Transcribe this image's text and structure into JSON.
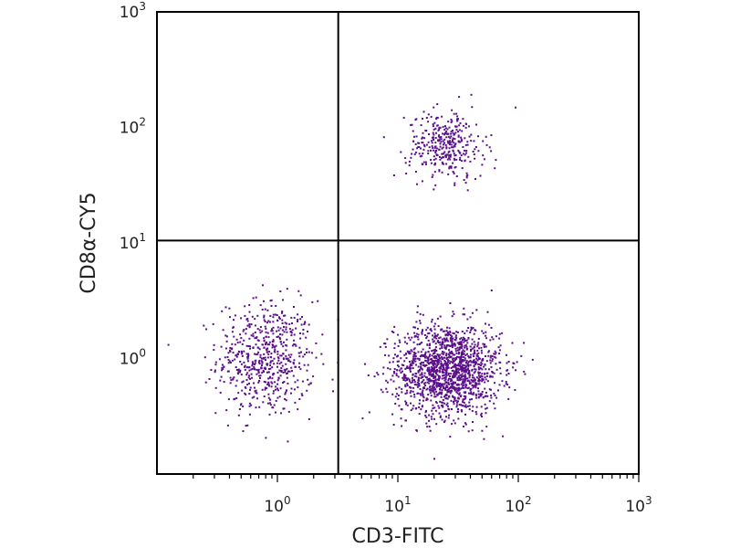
{
  "chart_data": {
    "type": "scatter",
    "xlabel": "CD3-FITC",
    "ylabel": "CD8α-CY5",
    "x_scale": "log",
    "y_scale": "log",
    "xlim": [
      0.1,
      1000
    ],
    "ylim": [
      0.1,
      1000
    ],
    "x_ticks": [
      {
        "value": 1,
        "base": "10",
        "exp": "0"
      },
      {
        "value": 10,
        "base": "10",
        "exp": "1"
      },
      {
        "value": 100,
        "base": "10",
        "exp": "2"
      },
      {
        "value": 1000,
        "base": "10",
        "exp": "3"
      }
    ],
    "y_ticks": [
      {
        "value": 1,
        "base": "10",
        "exp": "0"
      },
      {
        "value": 10,
        "base": "10",
        "exp": "1"
      },
      {
        "value": 100,
        "base": "10",
        "exp": "2"
      },
      {
        "value": 1000,
        "base": "10",
        "exp": "3"
      }
    ],
    "quadrant_gate": {
      "x": 3.2,
      "y": 10.5
    },
    "point_color": "#5b0f8a",
    "populations": [
      {
        "center_x": 0.8,
        "center_y": 1.0,
        "spread_x": 0.2,
        "spread_y": 0.25,
        "count": 600
      },
      {
        "center_x": 26,
        "center_y": 0.8,
        "spread_x": 0.22,
        "spread_y": 0.2,
        "count": 1500
      },
      {
        "center_x": 25,
        "center_y": 70,
        "spread_x": 0.16,
        "spread_y": 0.15,
        "count": 340
      }
    ],
    "grid": false
  }
}
